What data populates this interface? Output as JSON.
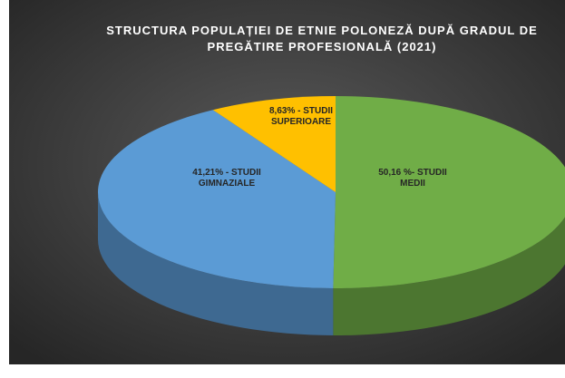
{
  "chart_data": {
    "type": "pie3d",
    "title": [
      "STRUCTURA POPULAȚIEI DE ETNIE POLONEZĂ DUPĂ GRADUL DE",
      "PREGĂTIRE PROFESIONALĂ (2021)"
    ],
    "values": [
      50.16,
      41.21,
      8.63
    ],
    "value_labels": [
      [
        "50,16 %- STUDII",
        "MEDII"
      ],
      [
        "41,21% - STUDII",
        "GIMNAZIALE"
      ],
      [
        "8,63% - STUDII",
        "SUPERIOARE"
      ]
    ],
    "colors": [
      "#70ad47",
      "#5b9bd5",
      "#ffc000"
    ]
  }
}
